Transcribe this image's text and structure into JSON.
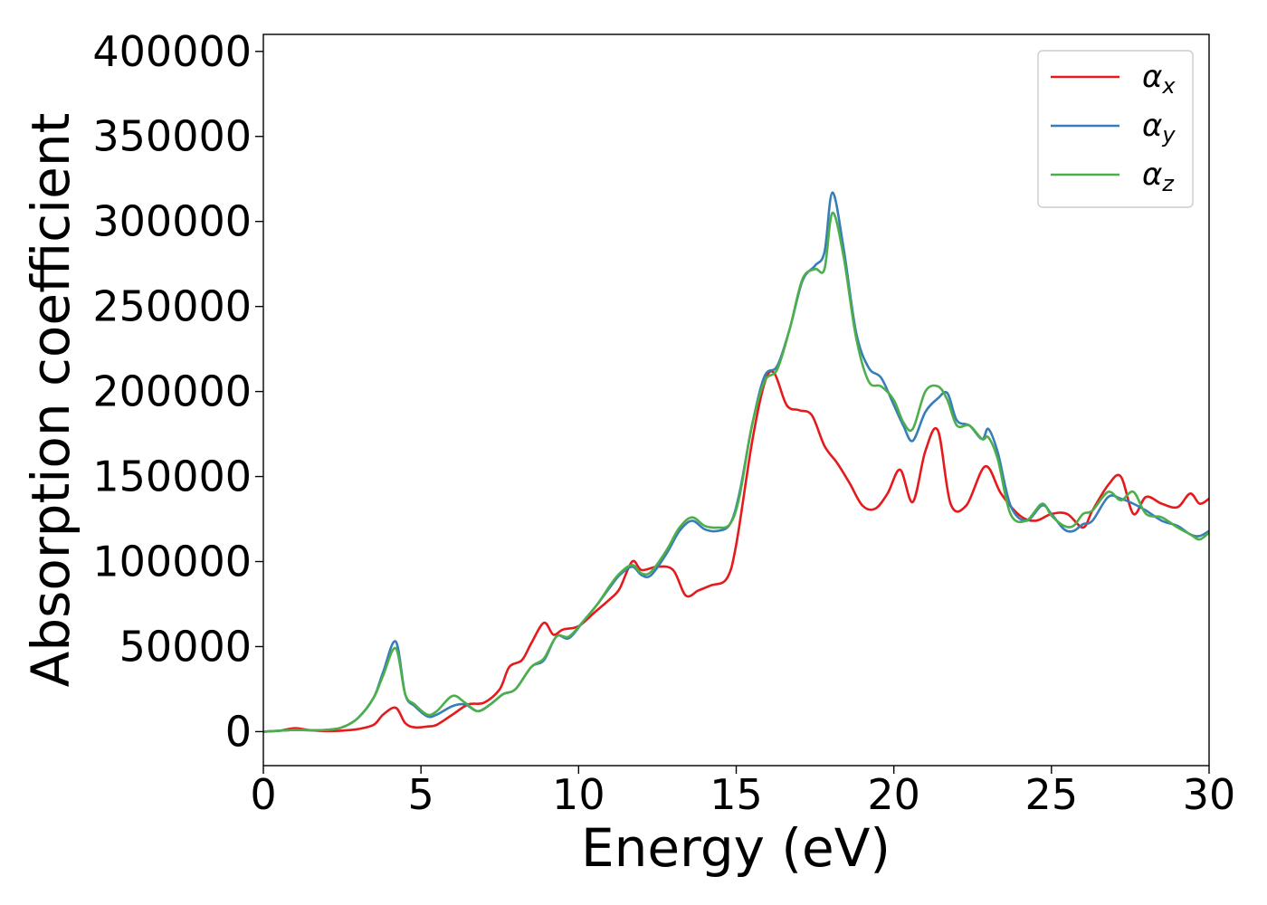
{
  "chart_data": {
    "type": "line",
    "xlabel": "Energy (eV)",
    "ylabel": "Absorption coefficient",
    "xlim": [
      0,
      30
    ],
    "ylim": [
      -20000,
      410000
    ],
    "xticks": [
      "0",
      "5",
      "10",
      "15",
      "20",
      "25",
      "30"
    ],
    "yticks": [
      "0",
      "50000",
      "100000",
      "150000",
      "200000",
      "250000",
      "300000",
      "350000",
      "400000"
    ],
    "grid": false,
    "legend_position": "top-right",
    "series": [
      {
        "name": "αx",
        "symbol": "α",
        "subscript": "x",
        "color": "#e41a1c",
        "x": [
          0,
          0.5,
          1.0,
          1.5,
          2.0,
          2.5,
          3.0,
          3.5,
          3.8,
          4.2,
          4.5,
          4.8,
          5.2,
          5.5,
          6.0,
          6.5,
          7.0,
          7.5,
          7.8,
          8.2,
          8.5,
          8.9,
          9.2,
          9.5,
          10.0,
          10.5,
          11.0,
          11.3,
          11.7,
          12.0,
          12.5,
          13.0,
          13.4,
          13.8,
          14.2,
          14.7,
          15.0,
          15.5,
          15.9,
          16.2,
          16.6,
          17.0,
          17.4,
          17.8,
          18.2,
          18.6,
          19.0,
          19.4,
          19.8,
          20.2,
          20.6,
          21.0,
          21.4,
          21.8,
          22.3,
          22.9,
          23.4,
          24.0,
          24.5,
          25.0,
          25.5,
          26.0,
          26.3,
          26.8,
          27.2,
          27.6,
          28.0,
          28.5,
          29.0,
          29.4,
          29.7,
          30.0
        ],
        "y": [
          0,
          500,
          2000,
          800,
          300,
          600,
          1500,
          4000,
          10000,
          14000,
          5000,
          2500,
          3000,
          4000,
          10000,
          16000,
          17000,
          25000,
          38000,
          42000,
          52000,
          64000,
          57000,
          60000,
          62000,
          70000,
          78000,
          84000,
          100000,
          95000,
          97000,
          95000,
          80000,
          83000,
          86000,
          90000,
          110000,
          170000,
          205000,
          211000,
          192000,
          189000,
          186000,
          168000,
          158000,
          146000,
          133000,
          131000,
          140000,
          154000,
          135000,
          165000,
          177000,
          134000,
          133000,
          156000,
          140000,
          127000,
          124000,
          128000,
          128000,
          120000,
          130000,
          145000,
          150000,
          128000,
          138000,
          134000,
          132000,
          140000,
          134000,
          137000
        ]
      },
      {
        "name": "αy",
        "symbol": "α",
        "subscript": "y",
        "color": "#377eb8",
        "x": [
          0,
          0.5,
          1.0,
          1.5,
          2.0,
          2.5,
          3.0,
          3.5,
          3.8,
          4.2,
          4.5,
          4.8,
          5.2,
          5.5,
          6.0,
          6.4,
          6.8,
          7.2,
          7.6,
          8.0,
          8.5,
          8.9,
          9.3,
          9.7,
          10.2,
          10.6,
          11.0,
          11.3,
          11.7,
          12.0,
          12.3,
          12.8,
          13.2,
          13.6,
          14.0,
          14.4,
          14.8,
          15.1,
          15.5,
          15.9,
          16.3,
          16.7,
          17.1,
          17.5,
          17.8,
          18.05,
          18.4,
          18.8,
          19.2,
          19.6,
          20.0,
          20.3,
          20.6,
          21.0,
          21.4,
          21.7,
          22.0,
          22.4,
          22.8,
          23.0,
          23.3,
          23.7,
          24.2,
          24.7,
          25.0,
          25.4,
          25.7,
          26.0,
          26.3,
          26.8,
          27.2,
          27.6,
          28.0,
          28.5,
          29.0,
          29.4,
          29.7,
          30.0
        ],
        "y": [
          0,
          500,
          1000,
          800,
          1000,
          2500,
          8000,
          20000,
          35000,
          53000,
          22000,
          15000,
          9000,
          10000,
          15000,
          16000,
          12000,
          16000,
          22000,
          25000,
          38000,
          42000,
          56000,
          55000,
          66000,
          75000,
          85000,
          92000,
          97000,
          92000,
          92000,
          105000,
          118000,
          124000,
          119000,
          118000,
          122000,
          140000,
          180000,
          209000,
          215000,
          237000,
          265000,
          274000,
          282000,
          317000,
          285000,
          235000,
          214000,
          208000,
          192000,
          180000,
          171000,
          188000,
          196000,
          199000,
          183000,
          180000,
          172000,
          178000,
          164000,
          133000,
          124000,
          133000,
          128000,
          119000,
          118000,
          122000,
          124000,
          138000,
          137000,
          134000,
          130000,
          124000,
          121000,
          116000,
          115000,
          118000
        ]
      },
      {
        "name": "αz",
        "symbol": "α",
        "subscript": "z",
        "color": "#4daf4a",
        "x": [
          0,
          0.5,
          1.0,
          1.5,
          2.0,
          2.5,
          3.0,
          3.5,
          3.8,
          4.2,
          4.5,
          4.8,
          5.2,
          5.5,
          6.0,
          6.4,
          6.8,
          7.2,
          7.6,
          8.0,
          8.5,
          8.9,
          9.3,
          9.7,
          10.2,
          10.6,
          11.0,
          11.3,
          11.7,
          12.0,
          12.3,
          12.8,
          13.2,
          13.6,
          14.0,
          14.4,
          14.8,
          15.1,
          15.5,
          15.9,
          16.3,
          16.7,
          17.1,
          17.5,
          17.8,
          18.05,
          18.4,
          18.8,
          19.2,
          19.6,
          20.0,
          20.3,
          20.6,
          21.0,
          21.4,
          21.7,
          22.0,
          22.4,
          22.8,
          23.0,
          23.3,
          23.7,
          24.2,
          24.7,
          25.0,
          25.4,
          25.7,
          26.0,
          26.3,
          26.8,
          27.2,
          27.6,
          28.0,
          28.5,
          29.0,
          29.4,
          29.7,
          30.0
        ],
        "y": [
          0,
          500,
          1000,
          800,
          1000,
          2500,
          8000,
          20000,
          33000,
          49000,
          22000,
          16000,
          10000,
          12000,
          21000,
          17000,
          12000,
          16000,
          22000,
          25000,
          38000,
          43000,
          56000,
          56000,
          66000,
          75000,
          86000,
          93000,
          98000,
          93000,
          94000,
          107000,
          120000,
          126000,
          121000,
          120000,
          122000,
          138000,
          180000,
          206000,
          213000,
          237000,
          266000,
          272000,
          272000,
          305000,
          280000,
          232000,
          206000,
          203000,
          195000,
          182000,
          178000,
          200000,
          203000,
          195000,
          180000,
          180000,
          172000,
          173000,
          160000,
          128000,
          124000,
          134000,
          127000,
          121000,
          121000,
          128000,
          130000,
          141000,
          136000,
          141000,
          128000,
          126000,
          120000,
          116000,
          113000,
          117000
        ]
      }
    ]
  }
}
